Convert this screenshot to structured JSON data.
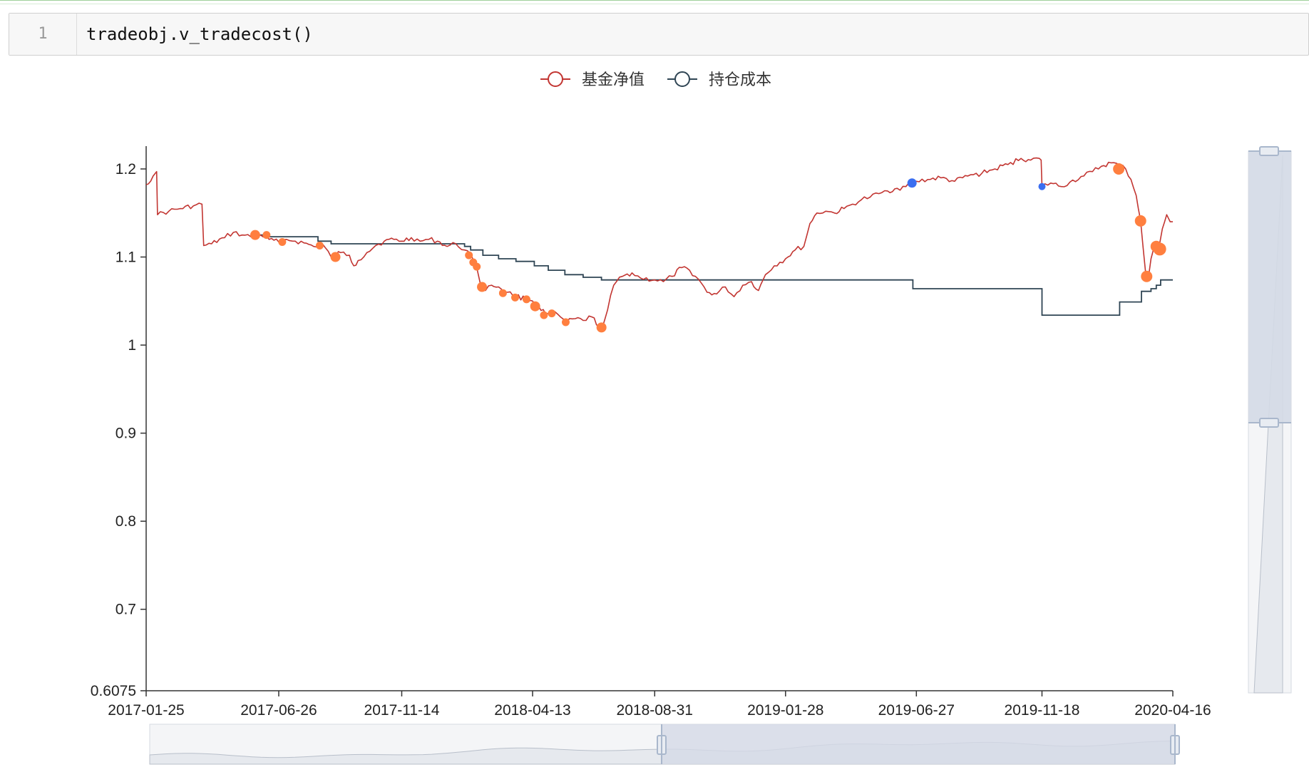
{
  "notebook": {
    "line_number": "1",
    "code": "tradeobj.v_tradecost()"
  },
  "chart_data": {
    "type": "line",
    "title": "",
    "xlabel": "",
    "ylabel": "",
    "ylim": [
      0.6075,
      1.2
    ],
    "y_ticks": [
      "0.6075",
      "0.7",
      "0.8",
      "0.9",
      "1",
      "1.1",
      "1.2"
    ],
    "x_ticks": [
      "2017-01-25",
      "2017-06-26",
      "2017-11-14",
      "2018-04-13",
      "2018-08-31",
      "2019-01-28",
      "2019-06-27",
      "2019-11-18",
      "2020-04-16"
    ],
    "legend_position": "top-center",
    "series": [
      {
        "name": "基金净值",
        "color": "#c23531",
        "points": [
          [
            "2017-01-25",
            1.182
          ],
          [
            "2017-02-02",
            1.192
          ],
          [
            "2017-02-06",
            1.197
          ],
          [
            "2017-02-07",
            1.148
          ],
          [
            "2017-02-20",
            1.152
          ],
          [
            "2017-03-05",
            1.155
          ],
          [
            "2017-03-20",
            1.158
          ],
          [
            "2017-03-30",
            1.16
          ],
          [
            "2017-04-01",
            1.113
          ],
          [
            "2017-04-10",
            1.115
          ],
          [
            "2017-04-25",
            1.122
          ],
          [
            "2017-05-05",
            1.128
          ],
          [
            "2017-05-15",
            1.125
          ],
          [
            "2017-05-25",
            1.123
          ],
          [
            "2017-06-05",
            1.125
          ],
          [
            "2017-06-15",
            1.12
          ],
          [
            "2017-06-26",
            1.117
          ],
          [
            "2017-07-05",
            1.12
          ],
          [
            "2017-07-15",
            1.118
          ],
          [
            "2017-07-25",
            1.116
          ],
          [
            "2017-08-05",
            1.112
          ],
          [
            "2017-08-15",
            1.115
          ],
          [
            "2017-08-25",
            1.1
          ],
          [
            "2017-09-05",
            1.105
          ],
          [
            "2017-09-15",
            1.102
          ],
          [
            "2017-09-20",
            1.09
          ],
          [
            "2017-09-25",
            1.096
          ],
          [
            "2017-10-05",
            1.105
          ],
          [
            "2017-10-15",
            1.113
          ],
          [
            "2017-10-25",
            1.118
          ],
          [
            "2017-11-05",
            1.12
          ],
          [
            "2017-11-14",
            1.118
          ],
          [
            "2017-11-25",
            1.122
          ],
          [
            "2017-12-05",
            1.118
          ],
          [
            "2017-12-15",
            1.12
          ],
          [
            "2017-12-25",
            1.118
          ],
          [
            "2018-01-05",
            1.112
          ],
          [
            "2018-01-15",
            1.115
          ],
          [
            "2018-01-25",
            1.108
          ],
          [
            "2018-02-01",
            1.103
          ],
          [
            "2018-02-05",
            1.095
          ],
          [
            "2018-02-08",
            1.088
          ],
          [
            "2018-02-12",
            1.07
          ],
          [
            "2018-02-18",
            1.062
          ],
          [
            "2018-02-25",
            1.068
          ],
          [
            "2018-03-05",
            1.066
          ],
          [
            "2018-03-15",
            1.06
          ],
          [
            "2018-03-25",
            1.056
          ],
          [
            "2018-04-05",
            1.052
          ],
          [
            "2018-04-13",
            1.05
          ],
          [
            "2018-04-20",
            1.044
          ],
          [
            "2018-04-28",
            1.035
          ],
          [
            "2018-05-05",
            1.037
          ],
          [
            "2018-05-15",
            1.032
          ],
          [
            "2018-05-22",
            1.026
          ],
          [
            "2018-06-01",
            1.03
          ],
          [
            "2018-06-10",
            1.028
          ],
          [
            "2018-06-20",
            1.032
          ],
          [
            "2018-06-28",
            1.022
          ],
          [
            "2018-07-02",
            1.02
          ],
          [
            "2018-07-08",
            1.04
          ],
          [
            "2018-07-15",
            1.068
          ],
          [
            "2018-07-25",
            1.078
          ],
          [
            "2018-08-05",
            1.082
          ],
          [
            "2018-08-15",
            1.076
          ],
          [
            "2018-08-31",
            1.074
          ],
          [
            "2018-09-10",
            1.072
          ],
          [
            "2018-09-20",
            1.078
          ],
          [
            "2018-10-01",
            1.088
          ],
          [
            "2018-10-10",
            1.085
          ],
          [
            "2018-10-20",
            1.075
          ],
          [
            "2018-10-30",
            1.06
          ],
          [
            "2018-11-10",
            1.058
          ],
          [
            "2018-11-20",
            1.066
          ],
          [
            "2018-11-30",
            1.055
          ],
          [
            "2018-12-10",
            1.068
          ],
          [
            "2018-12-20",
            1.072
          ],
          [
            "2018-12-28",
            1.062
          ],
          [
            "2019-01-05",
            1.08
          ],
          [
            "2019-01-15",
            1.09
          ],
          [
            "2019-01-28",
            1.098
          ],
          [
            "2019-02-08",
            1.108
          ],
          [
            "2019-02-18",
            1.112
          ],
          [
            "2019-02-25",
            1.138
          ],
          [
            "2019-03-05",
            1.15
          ],
          [
            "2019-03-15",
            1.152
          ],
          [
            "2019-03-25",
            1.15
          ],
          [
            "2019-04-05",
            1.155
          ],
          [
            "2019-04-15",
            1.16
          ],
          [
            "2019-04-25",
            1.165
          ],
          [
            "2019-05-05",
            1.168
          ],
          [
            "2019-05-15",
            1.172
          ],
          [
            "2019-05-25",
            1.175
          ],
          [
            "2019-06-05",
            1.178
          ],
          [
            "2019-06-15",
            1.18
          ],
          [
            "2019-06-27",
            1.186
          ],
          [
            "2019-07-10",
            1.188
          ],
          [
            "2019-07-25",
            1.19
          ],
          [
            "2019-08-10",
            1.186
          ],
          [
            "2019-08-25",
            1.192
          ],
          [
            "2019-09-10",
            1.195
          ],
          [
            "2019-09-25",
            1.2
          ],
          [
            "2019-10-10",
            1.205
          ],
          [
            "2019-10-25",
            1.212
          ],
          [
            "2019-11-05",
            1.21
          ],
          [
            "2019-11-15",
            1.212
          ],
          [
            "2019-11-17",
            1.21
          ],
          [
            "2019-11-18",
            1.18
          ],
          [
            "2019-11-28",
            1.184
          ],
          [
            "2019-12-10",
            1.18
          ],
          [
            "2019-12-20",
            1.185
          ],
          [
            "2020-01-05",
            1.192
          ],
          [
            "2020-01-15",
            1.197
          ],
          [
            "2020-01-25",
            1.203
          ],
          [
            "2020-02-05",
            1.207
          ],
          [
            "2020-02-15",
            1.204
          ],
          [
            "2020-02-22",
            1.2
          ],
          [
            "2020-02-28",
            1.188
          ],
          [
            "2020-03-05",
            1.17
          ],
          [
            "2020-03-10",
            1.142
          ],
          [
            "2020-03-16",
            1.08
          ],
          [
            "2020-03-19",
            1.076
          ],
          [
            "2020-03-22",
            1.098
          ],
          [
            "2020-03-26",
            1.113
          ],
          [
            "2020-03-31",
            1.11
          ],
          [
            "2020-04-04",
            1.132
          ],
          [
            "2020-04-09",
            1.148
          ],
          [
            "2020-04-13",
            1.14
          ],
          [
            "2020-04-16",
            1.14
          ]
        ],
        "sell_markers": [
          [
            "2017-05-30",
            1.125
          ],
          [
            "2017-06-12",
            1.125
          ],
          [
            "2017-06-30",
            1.117
          ],
          [
            "2017-08-12",
            1.113
          ],
          [
            "2017-08-30",
            1.1
          ],
          [
            "2018-01-30",
            1.102
          ],
          [
            "2018-02-04",
            1.094
          ],
          [
            "2018-02-08",
            1.089
          ],
          [
            "2018-02-14",
            1.066
          ],
          [
            "2018-03-10",
            1.059
          ],
          [
            "2018-03-24",
            1.054
          ],
          [
            "2018-04-06",
            1.052
          ],
          [
            "2018-04-16",
            1.044
          ],
          [
            "2018-04-26",
            1.034
          ],
          [
            "2018-05-05",
            1.036
          ],
          [
            "2018-05-21",
            1.026
          ],
          [
            "2018-07-01",
            1.02
          ],
          [
            "2020-02-14",
            1.2
          ],
          [
            "2020-03-10",
            1.141
          ],
          [
            "2020-03-17",
            1.078
          ],
          [
            "2020-03-28",
            1.112
          ],
          [
            "2020-04-01",
            1.109
          ]
        ],
        "buy_markers": [
          [
            "2019-06-22",
            1.184
          ],
          [
            "2019-11-18",
            1.18
          ]
        ]
      },
      {
        "name": "持仓成本",
        "color": "#2f4554",
        "points": [
          [
            "2017-05-25",
            1.125
          ],
          [
            "2017-06-10",
            1.123
          ],
          [
            "2017-08-10",
            1.118
          ],
          [
            "2017-08-25",
            1.115
          ],
          [
            "2018-01-25",
            1.112
          ],
          [
            "2018-02-01",
            1.108
          ],
          [
            "2018-02-15",
            1.102
          ],
          [
            "2018-03-05",
            1.098
          ],
          [
            "2018-03-25",
            1.095
          ],
          [
            "2018-04-15",
            1.09
          ],
          [
            "2018-05-01",
            1.085
          ],
          [
            "2018-05-20",
            1.08
          ],
          [
            "2018-06-10",
            1.077
          ],
          [
            "2018-07-01",
            1.074
          ],
          [
            "2019-06-22",
            1.074
          ],
          [
            "2019-06-23",
            1.064
          ],
          [
            "2019-11-17",
            1.064
          ],
          [
            "2019-11-18",
            1.034
          ],
          [
            "2020-02-14",
            1.034
          ],
          [
            "2020-02-15",
            1.049
          ],
          [
            "2020-03-10",
            1.049
          ],
          [
            "2020-03-11",
            1.061
          ],
          [
            "2020-03-22",
            1.064
          ],
          [
            "2020-03-28",
            1.068
          ],
          [
            "2020-04-02",
            1.074
          ],
          [
            "2020-04-16",
            1.074
          ]
        ]
      }
    ]
  },
  "ui": {
    "marker_sell_color": "#ff7f3f",
    "marker_buy_color": "#3b6ef0",
    "datazoom_fill": "#d4dae6",
    "datazoom_handle": "#a9b7cc"
  }
}
